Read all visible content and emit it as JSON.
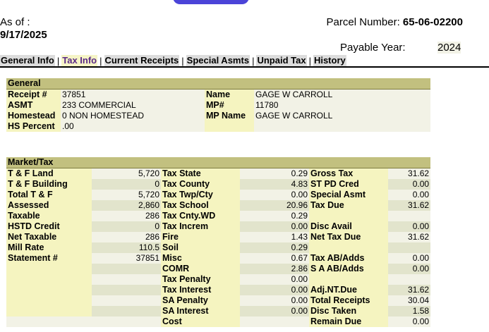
{
  "header": {
    "as_of_label": "As of :",
    "as_of_date": "9/17/2025",
    "parcel_label": "Parcel Number:",
    "parcel_number": "65-06-02200",
    "payable_label": "Payable Year:",
    "payable_year": "2024"
  },
  "tabs": [
    {
      "label": "General Info"
    },
    {
      "label": "Tax Info",
      "active": true
    },
    {
      "label": "Current Receipts"
    },
    {
      "label": "Special Asmts"
    },
    {
      "label": "Unpaid Tax"
    },
    {
      "label": "History"
    }
  ],
  "general": {
    "title": "General",
    "rows": [
      {
        "l1": "Receipt #",
        "v1": "37851",
        "l2": "Name",
        "v2": "GAGE W CARROLL"
      },
      {
        "l1": "ASMT",
        "v1": "233 COMMERCIAL",
        "l2": "MP#",
        "v2": "11780"
      },
      {
        "l1": "Homestead",
        "v1": "0 NON HOMESTEAD",
        "l2": "MP Name",
        "v2": "GAGE W CARROLL"
      },
      {
        "l1": "HS Percent",
        "v1": ".00",
        "l2": "",
        "v2": ""
      }
    ]
  },
  "market": {
    "title": "Market/Tax",
    "rows": [
      {
        "l1": "T & F Land",
        "v1": "5,720",
        "l2": "Tax State",
        "v2": "0.29",
        "l3": "Gross Tax",
        "v3": "31.62"
      },
      {
        "l1": "T & F Building",
        "v1": "0",
        "l2": "Tax County",
        "v2": "4.83",
        "l3": "ST PD Cred",
        "v3": "0.00"
      },
      {
        "l1": "Total T & F",
        "v1": "5,720",
        "l2": "Tax Twp/Cty",
        "v2": "0.00",
        "l3": "Special Asmt",
        "v3": "0.00"
      },
      {
        "l1": "Assessed",
        "v1": "2,860",
        "l2": "Tax School",
        "v2": "20.96",
        "l3": "Tax Due",
        "v3": "31.62"
      },
      {
        "l1": "Taxable",
        "v1": "286",
        "l2": "Tax Cnty.WD",
        "v2": "0.29",
        "l3": "",
        "v3": ""
      },
      {
        "l1": "HSTD Credit",
        "v1": "0",
        "l2": "Tax Increm",
        "v2": "0.00",
        "l3": "Disc Avail",
        "v3": "0.00"
      },
      {
        "l1": "Net Taxable",
        "v1": "286",
        "l2": "Fire",
        "v2": "1.43",
        "l3": "Net Tax Due",
        "v3": "31.62"
      },
      {
        "l1": "Mill Rate",
        "v1": "110.5",
        "l2": "Soil",
        "v2": "0.29",
        "l3": "",
        "v3": ""
      },
      {
        "l1": "Statement #",
        "v1": "37851",
        "l2": "Misc",
        "v2": "0.67",
        "l3": "Tax AB/Adds",
        "v3": "0.00"
      },
      {
        "l1": "",
        "v1": "",
        "l2": "COMR",
        "v2": "2.86",
        "l3": "S A AB/Adds",
        "v3": "0.00"
      },
      {
        "l1": "",
        "v1": "",
        "l2": "Tax Penalty",
        "v2": "0.00",
        "l3": "",
        "v3": ""
      },
      {
        "l1": "",
        "v1": "",
        "l2": "Tax Interest",
        "v2": "0.00",
        "l3": "Adj.NT.Due",
        "v3": "31.62"
      },
      {
        "l1": "",
        "v1": "",
        "l2": "SA Penalty",
        "v2": "0.00",
        "l3": "Total Receipts",
        "v3": "30.04"
      },
      {
        "l1": "",
        "v1": "",
        "l2": "SA Interest",
        "v2": "0.00",
        "l3": "Disc Taken",
        "v3": "1.58"
      },
      {
        "l1": "",
        "v1": "",
        "l2": "Cost",
        "v2": "",
        "l3": "Remain Due",
        "v3": "0.00"
      }
    ]
  },
  "colors": {
    "header_band": "#c2c07f",
    "label_bg": "#f5f4c0",
    "value_bg": "#f2f2e6",
    "value_alt_bg": "#e2e4cc",
    "top_button": "#4b44d8",
    "active_tab": "#5b2a86"
  }
}
